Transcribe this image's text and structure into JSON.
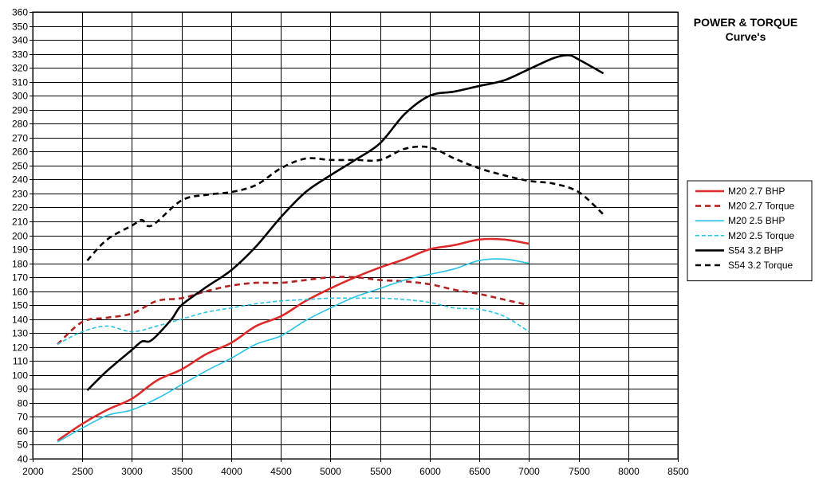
{
  "chart_data": {
    "type": "line",
    "title": "POWER & TORQUE",
    "subtitle": "Curve's",
    "xlabel": "",
    "ylabel": "",
    "xlim": [
      2000,
      8500
    ],
    "ylim": [
      40,
      360
    ],
    "x_ticks": [
      2000,
      2500,
      3000,
      3500,
      4000,
      4500,
      5000,
      5500,
      6000,
      6500,
      7000,
      7500,
      8000,
      8500
    ],
    "y_ticks": [
      40,
      50,
      60,
      70,
      80,
      90,
      100,
      110,
      120,
      130,
      140,
      150,
      160,
      170,
      180,
      190,
      200,
      210,
      220,
      230,
      240,
      250,
      260,
      270,
      280,
      290,
      300,
      310,
      320,
      330,
      340,
      350,
      360
    ],
    "grid": true,
    "legend_position": "right",
    "series": [
      {
        "name": "M20 2.7 BHP",
        "color": "#dd2a2a",
        "dash": "solid",
        "points": [
          [
            2250,
            53
          ],
          [
            2500,
            65
          ],
          [
            2750,
            75
          ],
          [
            3000,
            83
          ],
          [
            3250,
            96
          ],
          [
            3500,
            104
          ],
          [
            3750,
            115
          ],
          [
            4000,
            123
          ],
          [
            4250,
            135
          ],
          [
            4500,
            142
          ],
          [
            4750,
            153
          ],
          [
            5000,
            162
          ],
          [
            5250,
            170
          ],
          [
            5500,
            177
          ],
          [
            5750,
            183
          ],
          [
            6000,
            190
          ],
          [
            6250,
            193
          ],
          [
            6500,
            197
          ],
          [
            6750,
            197
          ],
          [
            7000,
            194
          ]
        ]
      },
      {
        "name": "M20 2.7 Torque",
        "color": "#b22222",
        "dash": "dashed",
        "points": [
          [
            2250,
            122
          ],
          [
            2500,
            138
          ],
          [
            2750,
            141
          ],
          [
            3000,
            144
          ],
          [
            3250,
            153
          ],
          [
            3500,
            155
          ],
          [
            3750,
            160
          ],
          [
            4000,
            164
          ],
          [
            4250,
            166
          ],
          [
            4500,
            166
          ],
          [
            4750,
            168
          ],
          [
            5000,
            170
          ],
          [
            5250,
            170
          ],
          [
            5500,
            168
          ],
          [
            5750,
            167
          ],
          [
            6000,
            165
          ],
          [
            6250,
            161
          ],
          [
            6500,
            158
          ],
          [
            6750,
            154
          ],
          [
            7000,
            150
          ]
        ]
      },
      {
        "name": "M20 2.5 BHP",
        "color": "#29c3e6",
        "dash": "solid",
        "points": [
          [
            2250,
            52
          ],
          [
            2500,
            62
          ],
          [
            2750,
            71
          ],
          [
            3000,
            75
          ],
          [
            3250,
            83
          ],
          [
            3500,
            93
          ],
          [
            3750,
            103
          ],
          [
            4000,
            112
          ],
          [
            4250,
            122
          ],
          [
            4500,
            128
          ],
          [
            4750,
            139
          ],
          [
            5000,
            148
          ],
          [
            5250,
            156
          ],
          [
            5500,
            162
          ],
          [
            5750,
            168
          ],
          [
            6000,
            172
          ],
          [
            6250,
            176
          ],
          [
            6500,
            182
          ],
          [
            6750,
            183
          ],
          [
            7000,
            180
          ]
        ]
      },
      {
        "name": "M20 2.5 Torque",
        "color": "#29c3e6",
        "dash": "dashed",
        "points": [
          [
            2250,
            122
          ],
          [
            2500,
            131
          ],
          [
            2750,
            135
          ],
          [
            3000,
            131
          ],
          [
            3250,
            135
          ],
          [
            3500,
            140
          ],
          [
            3750,
            145
          ],
          [
            4000,
            148
          ],
          [
            4250,
            151
          ],
          [
            4500,
            153
          ],
          [
            4750,
            154
          ],
          [
            5000,
            155
          ],
          [
            5250,
            155
          ],
          [
            5500,
            155
          ],
          [
            5750,
            154
          ],
          [
            6000,
            152
          ],
          [
            6250,
            148
          ],
          [
            6500,
            147
          ],
          [
            6750,
            142
          ],
          [
            7000,
            131
          ]
        ]
      },
      {
        "name": "S54 3.2 BHP",
        "color": "#000000",
        "dash": "solid",
        "points": [
          [
            2550,
            89
          ],
          [
            2750,
            103
          ],
          [
            3000,
            118
          ],
          [
            3100,
            124
          ],
          [
            3200,
            125
          ],
          [
            3400,
            140
          ],
          [
            3500,
            150
          ],
          [
            3750,
            163
          ],
          [
            4000,
            175
          ],
          [
            4250,
            192
          ],
          [
            4500,
            213
          ],
          [
            4750,
            231
          ],
          [
            5000,
            243
          ],
          [
            5250,
            254
          ],
          [
            5500,
            266
          ],
          [
            5750,
            287
          ],
          [
            6000,
            300
          ],
          [
            6250,
            303
          ],
          [
            6500,
            307
          ],
          [
            6750,
            311
          ],
          [
            7000,
            319
          ],
          [
            7250,
            327
          ],
          [
            7400,
            329
          ],
          [
            7500,
            326
          ],
          [
            7750,
            316
          ]
        ]
      },
      {
        "name": "S54 3.2 Torque",
        "color": "#000000",
        "dash": "dashed",
        "points": [
          [
            2550,
            182
          ],
          [
            2750,
            197
          ],
          [
            3000,
            207
          ],
          [
            3100,
            211
          ],
          [
            3200,
            207
          ],
          [
            3500,
            225
          ],
          [
            3750,
            229
          ],
          [
            4000,
            231
          ],
          [
            4250,
            236
          ],
          [
            4500,
            248
          ],
          [
            4750,
            255
          ],
          [
            5000,
            254
          ],
          [
            5250,
            254
          ],
          [
            5500,
            254
          ],
          [
            5750,
            262
          ],
          [
            6000,
            263
          ],
          [
            6250,
            255
          ],
          [
            6500,
            248
          ],
          [
            6750,
            243
          ],
          [
            7000,
            239
          ],
          [
            7250,
            237
          ],
          [
            7500,
            231
          ],
          [
            7750,
            215
          ]
        ]
      }
    ]
  }
}
